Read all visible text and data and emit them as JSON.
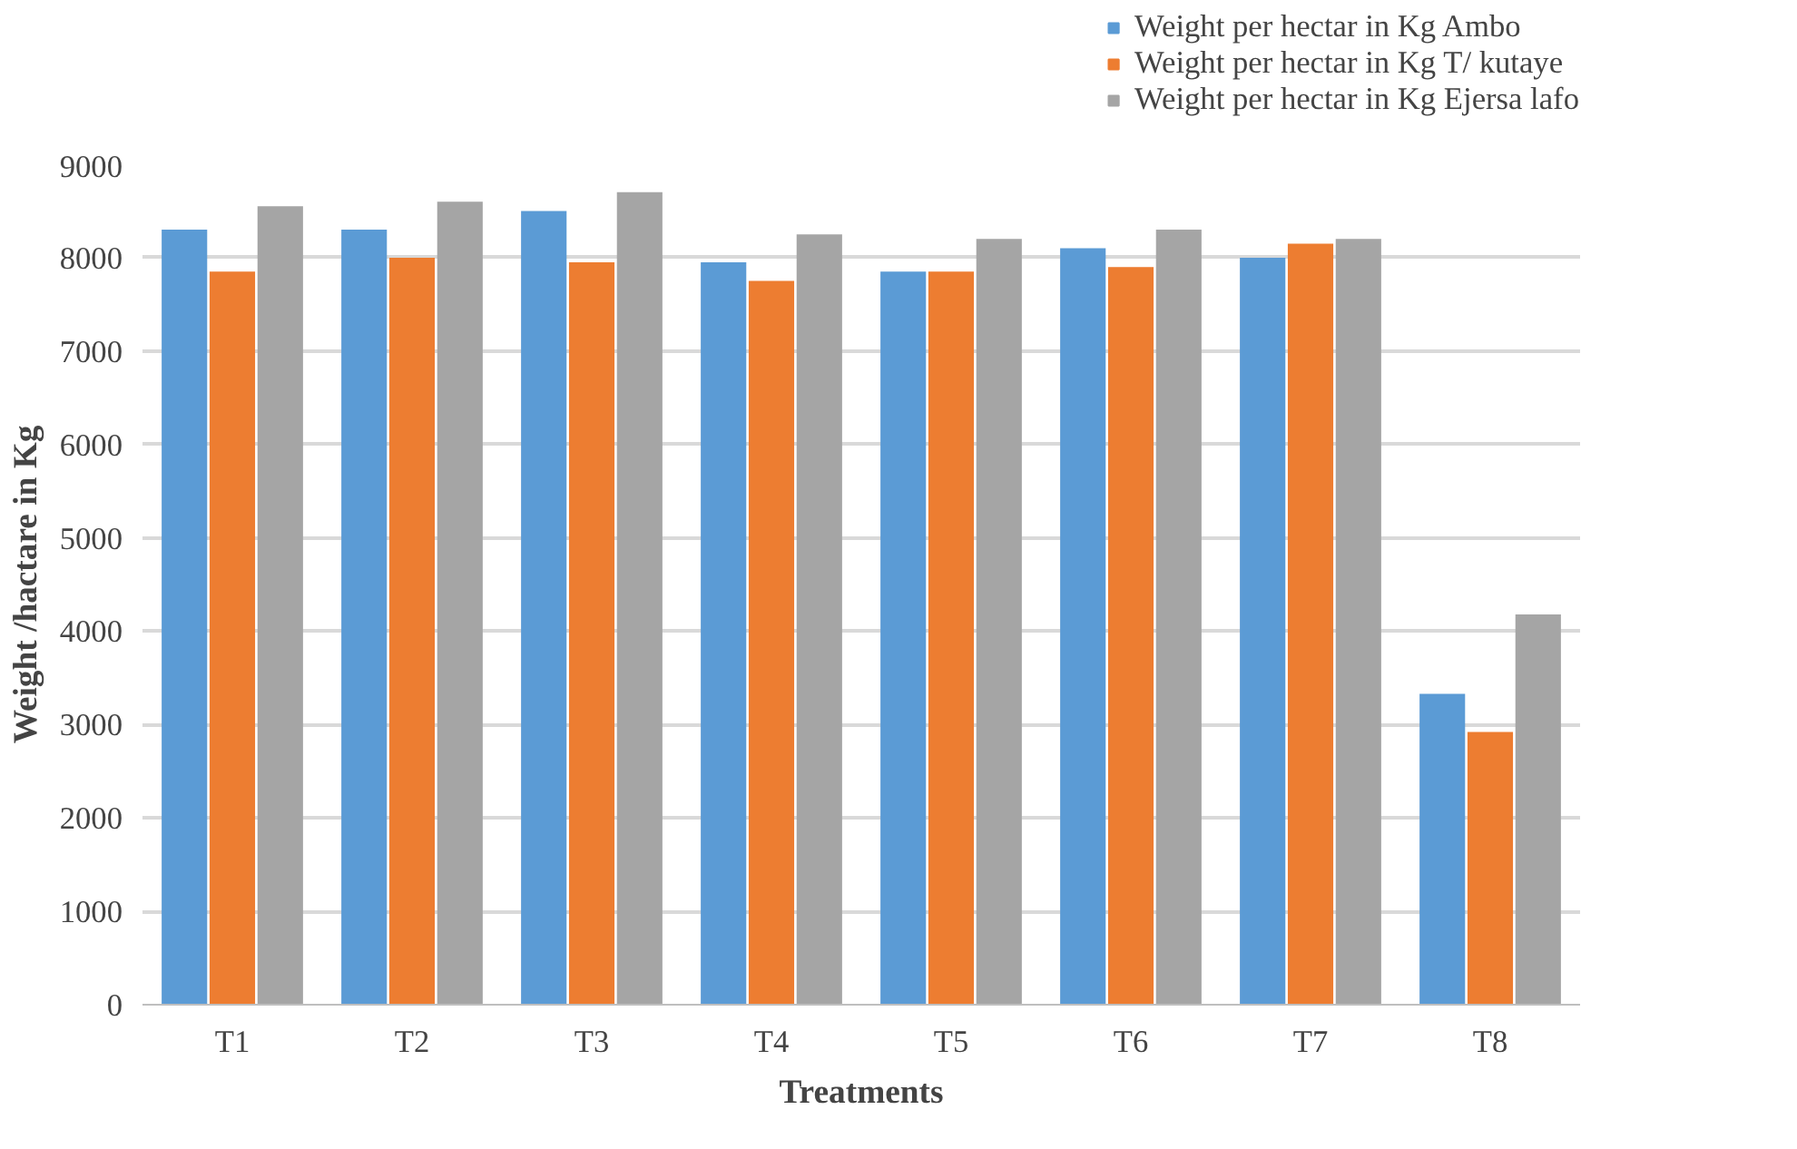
{
  "chart_data": {
    "type": "bar",
    "xlabel": "Treatments",
    "ylabel": "Weight /hactare in Kg",
    "categories": [
      "T1",
      "T2",
      "T3",
      "T4",
      "T5",
      "T6",
      "T7",
      "T8"
    ],
    "series": [
      {
        "name": "Weight per hectar in Kg Ambo",
        "color": "#5b9bd5",
        "values": [
          8300,
          8300,
          8500,
          7950,
          7850,
          8100,
          8000,
          3330
        ]
      },
      {
        "name": "Weight per hectar in Kg T/ kutaye",
        "color": "#ed7d31",
        "values": [
          7850,
          8000,
          7950,
          7750,
          7850,
          7900,
          8150,
          2920
        ]
      },
      {
        "name": "Weight per hectar in Kg Ejersa lafo",
        "color": "#a5a5a5",
        "values": [
          8550,
          8600,
          8700,
          8250,
          8200,
          8300,
          8200,
          4180
        ]
      }
    ],
    "ylim": [
      0,
      9000
    ],
    "yticks": [
      0,
      1000,
      2000,
      3000,
      4000,
      5000,
      6000,
      7000,
      8000,
      9000
    ],
    "grid": "y",
    "legend": "top right"
  }
}
